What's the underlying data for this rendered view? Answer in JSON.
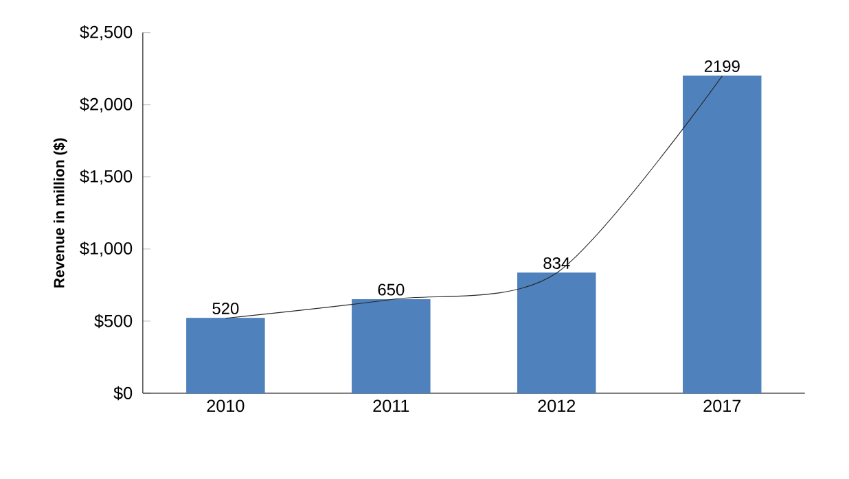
{
  "chart_data": {
    "type": "bar",
    "ylabel": "Revenue in million ($)",
    "categories": [
      "2010",
      "2011",
      "2012",
      "2017"
    ],
    "series": [
      {
        "color": "#4f81bd",
        "values": [
          520,
          650,
          834,
          2199
        ],
        "value_labels": [
          "520",
          "650",
          "834",
          "2199"
        ]
      },
      {
        "type": "line",
        "color": "#262626",
        "values": [
          520,
          650,
          834,
          2199
        ]
      }
    ],
    "ylim": [
      0,
      2500
    ],
    "yticks": [
      {
        "value": 0,
        "label": "$0"
      },
      {
        "value": 500,
        "label": "$500"
      },
      {
        "value": 1000,
        "label": "$1,000"
      },
      {
        "value": 1500,
        "label": "$1,500"
      },
      {
        "value": 2000,
        "label": "$2,000"
      },
      {
        "value": 2500,
        "label": "$2,500"
      }
    ],
    "grid": false,
    "marker": "none",
    "line_style": "solid"
  }
}
